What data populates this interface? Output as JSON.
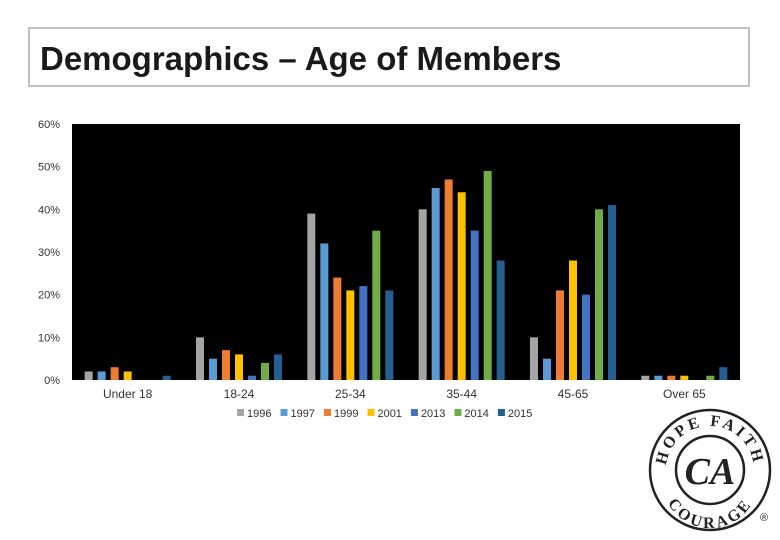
{
  "title": "Demographics – Age of Members",
  "chart_data": {
    "type": "bar",
    "categories": [
      "Under 18",
      "18-24",
      "25-34",
      "35-44",
      "45-65",
      "Over 65"
    ],
    "series": [
      {
        "name": "1996",
        "color": "#a5a5a5",
        "values": [
          2,
          10,
          39,
          40,
          10,
          1
        ]
      },
      {
        "name": "1997",
        "color": "#5b9bd5",
        "values": [
          2,
          5,
          32,
          45,
          5,
          1
        ]
      },
      {
        "name": "1999",
        "color": "#ed7d31",
        "values": [
          3,
          7,
          24,
          47,
          21,
          1
        ]
      },
      {
        "name": "2001",
        "color": "#ffc000",
        "values": [
          2,
          6,
          21,
          44,
          28,
          1
        ]
      },
      {
        "name": "2013",
        "color": "#4472c4",
        "values": [
          0,
          1,
          22,
          35,
          20,
          0
        ]
      },
      {
        "name": "2014",
        "color": "#70ad47",
        "values": [
          0,
          4,
          35,
          49,
          40,
          1
        ]
      },
      {
        "name": "2015",
        "color": "#255e91",
        "values": [
          1,
          6,
          21,
          28,
          41,
          3
        ]
      }
    ],
    "yticks": [
      "0%",
      "10%",
      "20%",
      "30%",
      "40%",
      "50%",
      "60%"
    ],
    "ylim": [
      0,
      60
    ],
    "grid": false,
    "plot_background": "#000000",
    "legend_position": "bottom"
  },
  "logo": {
    "top_words": "HOPE FAITH",
    "bottom_word": "COURAGE",
    "initials": "CA",
    "registered_mark": "®"
  }
}
